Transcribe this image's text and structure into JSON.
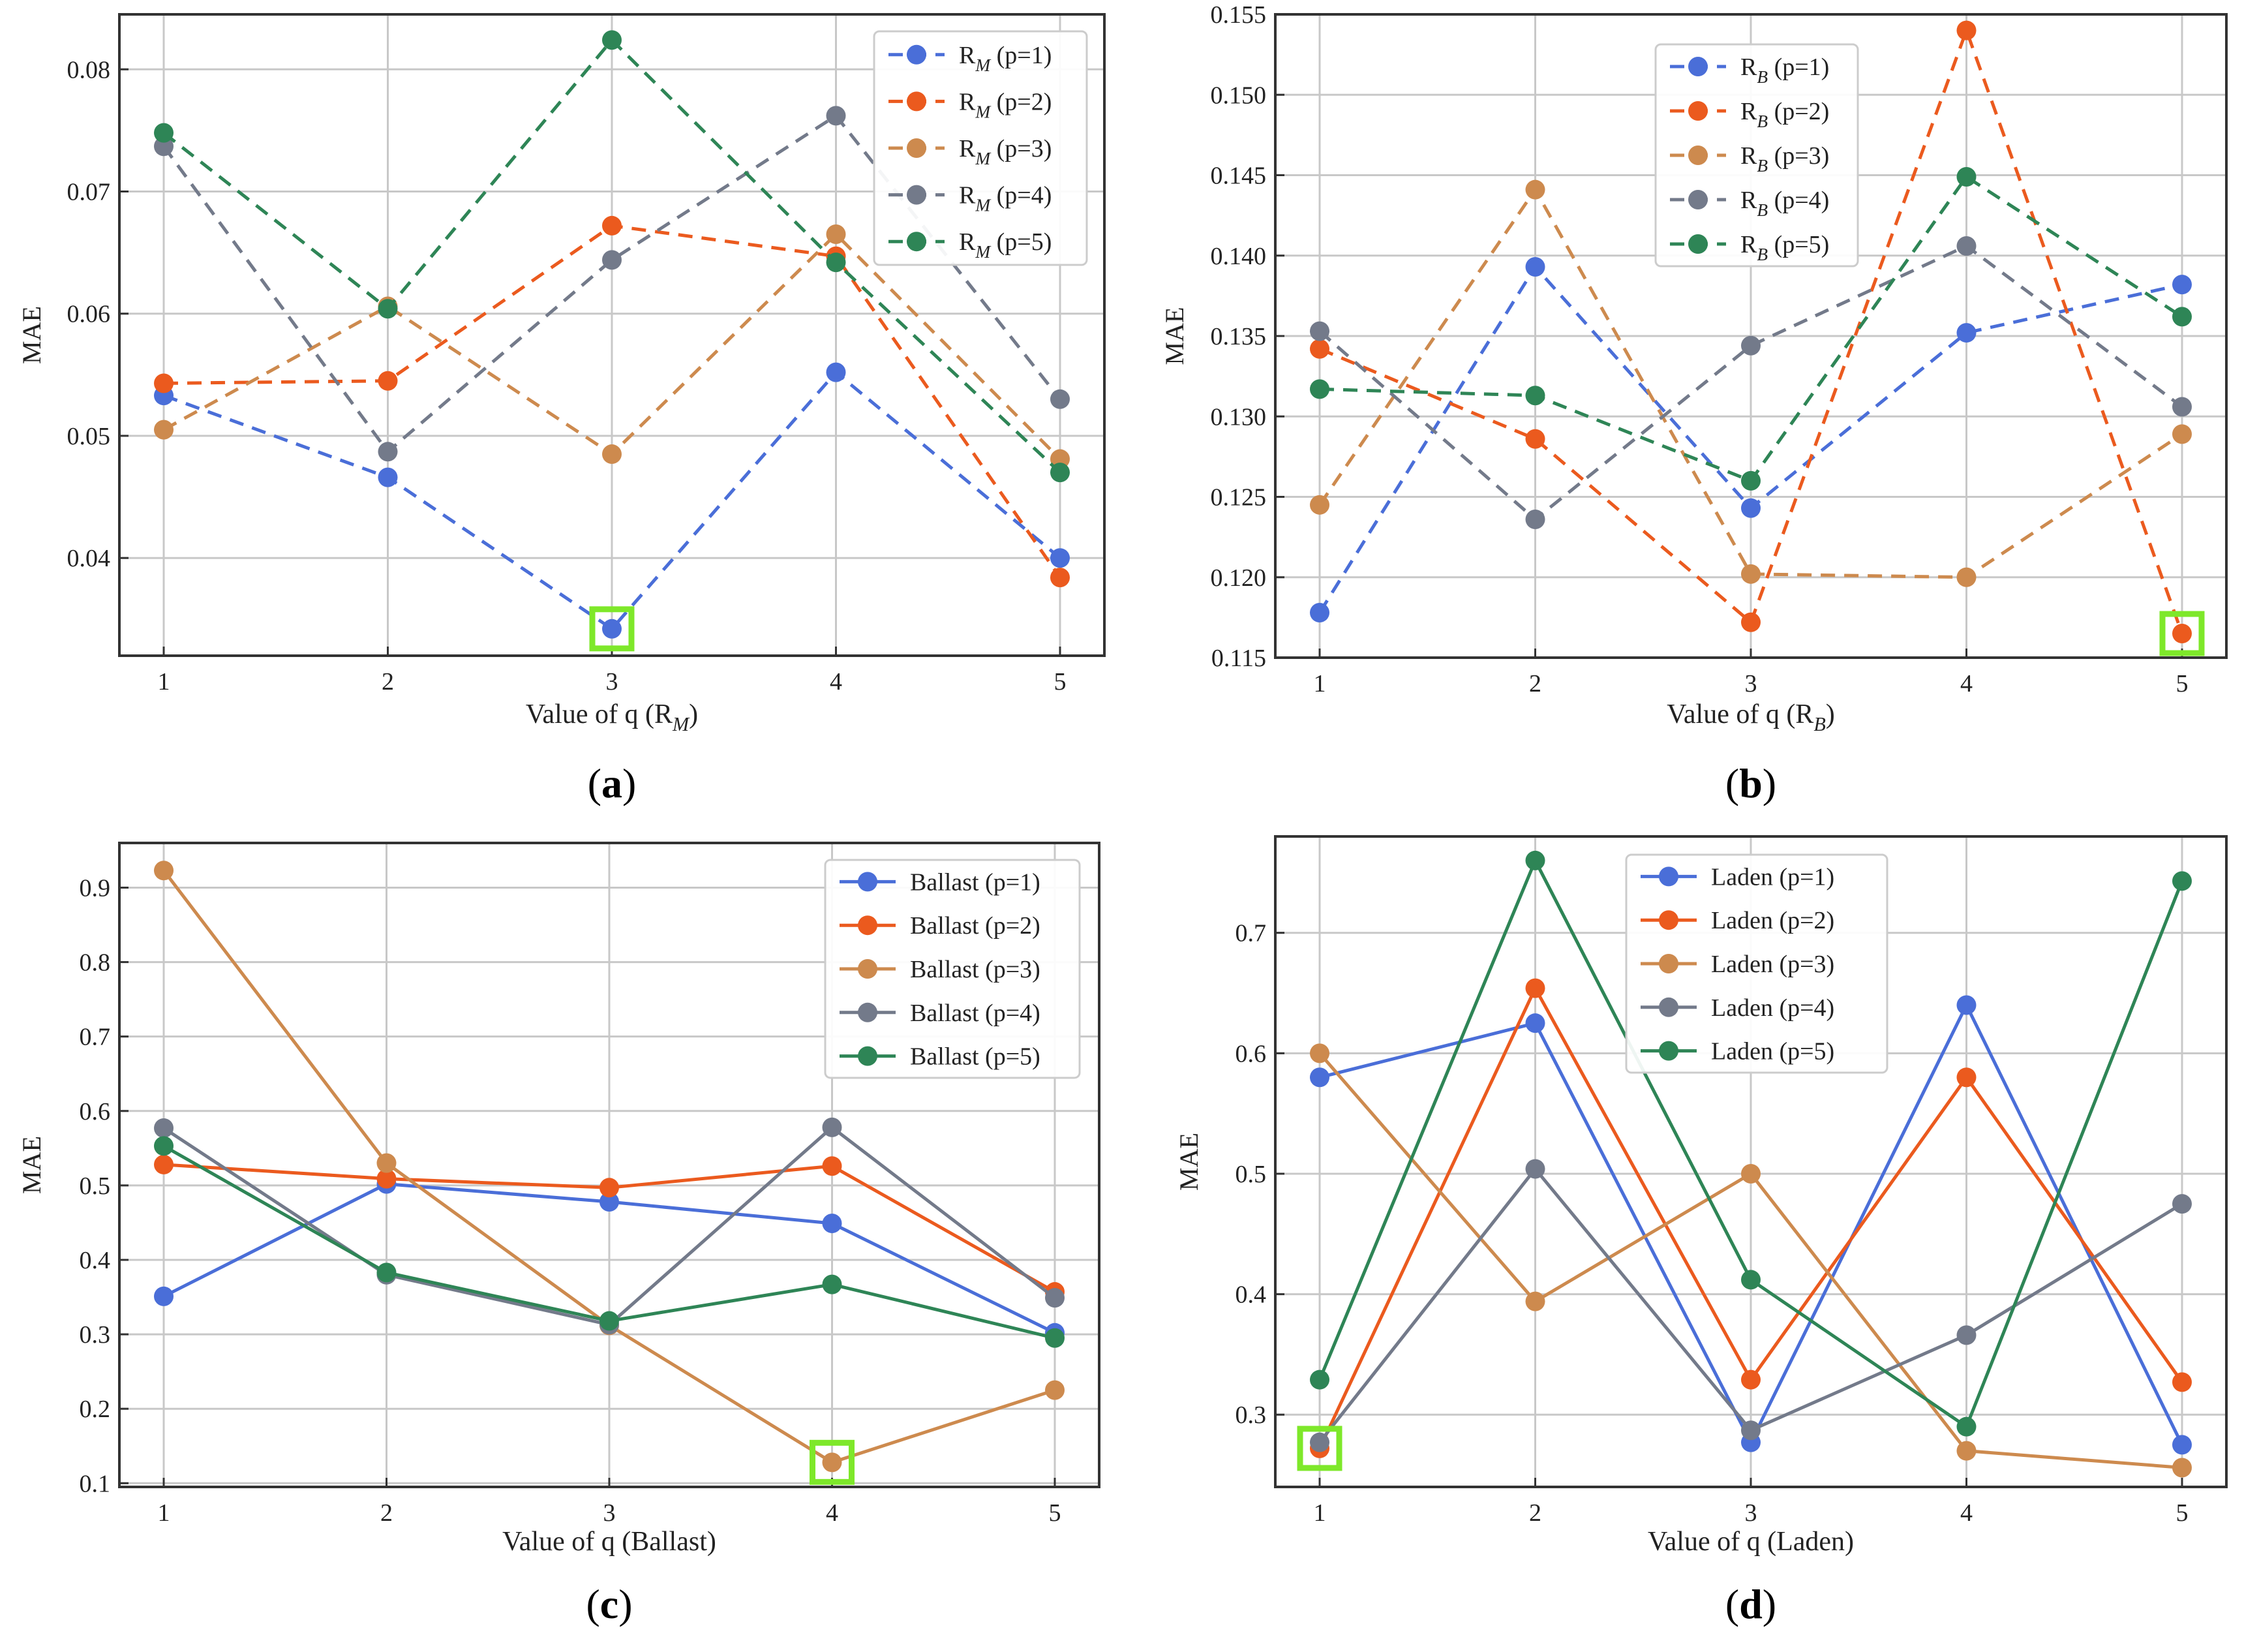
{
  "colors": {
    "p1": "#4a6ed8",
    "p2": "#eb5a1e",
    "p3": "#cd8a4e",
    "p4": "#737a8a",
    "p5": "#2e8556",
    "highlight": "#7ee82a",
    "grid": "#c8c8c8",
    "axis": "#333333"
  },
  "chart_data": [
    {
      "panel": "a",
      "panel_label": "a",
      "type": "line",
      "line_style": "dashed",
      "xlabel": "Value of q (R_M)",
      "xlabel_parts": [
        "Value of q (R",
        "M",
        ")"
      ],
      "ylabel": "MAE",
      "x": [
        1,
        2,
        3,
        4,
        5
      ],
      "xticks": [
        "1",
        "2",
        "3",
        "4",
        "5"
      ],
      "ylim": [
        0.032,
        0.0845
      ],
      "yticks": [
        0.04,
        0.05,
        0.06,
        0.07,
        0.08
      ],
      "ytick_labels": [
        "0.04",
        "0.05",
        "0.06",
        "0.07",
        "0.08"
      ],
      "legend_position": "top-right",
      "series": [
        {
          "name": "R_M (p=1)",
          "legend_parts": [
            "R",
            "M",
            " (p=1)"
          ],
          "color_key": "p1",
          "values": [
            0.0533,
            0.0466,
            0.0342,
            0.0552,
            0.04
          ]
        },
        {
          "name": "R_M (p=2)",
          "legend_parts": [
            "R",
            "M",
            " (p=2)"
          ],
          "color_key": "p2",
          "values": [
            0.0543,
            0.0545,
            0.0672,
            0.0647,
            0.0384
          ]
        },
        {
          "name": "R_M (p=3)",
          "legend_parts": [
            "R",
            "M",
            " (p=3)"
          ],
          "color_key": "p3",
          "values": [
            0.0505,
            0.0606,
            0.0485,
            0.0665,
            0.0481
          ]
        },
        {
          "name": "R_M (p=4)",
          "legend_parts": [
            "R",
            "M",
            " (p=4)"
          ],
          "color_key": "p4",
          "values": [
            0.0737,
            0.0487,
            0.0644,
            0.0762,
            0.053
          ]
        },
        {
          "name": "R_M (p=5)",
          "legend_parts": [
            "R",
            "M",
            " (p=5)"
          ],
          "color_key": "p5",
          "values": [
            0.0748,
            0.0604,
            0.0824,
            0.0642,
            0.047
          ]
        }
      ],
      "highlight": {
        "x": 3,
        "y": 0.0342,
        "series": "R_M (p=1)"
      }
    },
    {
      "panel": "b",
      "panel_label": "b",
      "type": "line",
      "line_style": "dashed",
      "xlabel": "Value of q (R_B)",
      "xlabel_parts": [
        "Value of q (R",
        "B",
        ")"
      ],
      "ylabel": "MAE",
      "x": [
        1,
        2,
        3,
        4,
        5
      ],
      "xticks": [
        "1",
        "2",
        "3",
        "4",
        "5"
      ],
      "ylim": [
        0.115,
        0.155
      ],
      "yticks": [
        0.115,
        0.12,
        0.125,
        0.13,
        0.135,
        0.14,
        0.145,
        0.15,
        0.155
      ],
      "ytick_labels": [
        "0.115",
        "0.120",
        "0.125",
        "0.130",
        "0.135",
        "0.140",
        "0.145",
        "0.150",
        "0.155"
      ],
      "legend_position": "top-center",
      "series": [
        {
          "name": "R_B (p=1)",
          "legend_parts": [
            "R",
            "B",
            " (p=1)"
          ],
          "color_key": "p1",
          "values": [
            0.1178,
            0.1393,
            0.1243,
            0.1352,
            0.1382
          ]
        },
        {
          "name": "R_B (p=2)",
          "legend_parts": [
            "R",
            "B",
            " (p=2)"
          ],
          "color_key": "p2",
          "values": [
            0.1342,
            0.1286,
            0.1172,
            0.154,
            0.1165
          ]
        },
        {
          "name": "R_B (p=3)",
          "legend_parts": [
            "R",
            "B",
            " (p=3)"
          ],
          "color_key": "p3",
          "values": [
            0.1245,
            0.1441,
            0.1202,
            0.12,
            0.1289
          ]
        },
        {
          "name": "R_B (p=4)",
          "legend_parts": [
            "R",
            "B",
            " (p=4)"
          ],
          "color_key": "p4",
          "values": [
            0.1353,
            0.1236,
            0.1344,
            0.1406,
            0.1306
          ]
        },
        {
          "name": "R_B (p=5)",
          "legend_parts": [
            "R",
            "B",
            " (p=5)"
          ],
          "color_key": "p5",
          "values": [
            0.1317,
            0.1313,
            0.126,
            0.1449,
            0.1362
          ]
        }
      ],
      "highlight": {
        "x": 5,
        "y": 0.1165,
        "series": "R_B (p=2)"
      }
    },
    {
      "panel": "c",
      "panel_label": "c",
      "type": "line",
      "line_style": "solid",
      "xlabel": "Value of q (Ballast)",
      "xlabel_parts": [
        "Value of q (Ballast)",
        "",
        ""
      ],
      "ylabel": "MAE",
      "x": [
        1,
        2,
        3,
        4,
        5
      ],
      "xticks": [
        "1",
        "2",
        "3",
        "4",
        "5"
      ],
      "ylim": [
        0.095,
        0.96
      ],
      "yticks": [
        0.1,
        0.2,
        0.3,
        0.4,
        0.5,
        0.6,
        0.7,
        0.8,
        0.9
      ],
      "ytick_labels": [
        "0.1",
        "0.2",
        "0.3",
        "0.4",
        "0.5",
        "0.6",
        "0.7",
        "0.8",
        "0.9"
      ],
      "legend_position": "top-right",
      "series": [
        {
          "name": "Ballast (p=1)",
          "legend_parts": [
            "Ballast (p=1)",
            "",
            ""
          ],
          "color_key": "p1",
          "values": [
            0.351,
            0.502,
            0.478,
            0.449,
            0.302
          ]
        },
        {
          "name": "Ballast (p=2)",
          "legend_parts": [
            "Ballast (p=2)",
            "",
            ""
          ],
          "color_key": "p2",
          "values": [
            0.528,
            0.509,
            0.497,
            0.526,
            0.357
          ]
        },
        {
          "name": "Ballast (p=3)",
          "legend_parts": [
            "Ballast (p=3)",
            "",
            ""
          ],
          "color_key": "p3",
          "values": [
            0.923,
            0.53,
            0.312,
            0.128,
            0.225
          ]
        },
        {
          "name": "Ballast (p=4)",
          "legend_parts": [
            "Ballast (p=4)",
            "",
            ""
          ],
          "color_key": "p4",
          "values": [
            0.577,
            0.38,
            0.313,
            0.578,
            0.349
          ]
        },
        {
          "name": "Ballast (p=5)",
          "legend_parts": [
            "Ballast (p=5)",
            "",
            ""
          ],
          "color_key": "p5",
          "values": [
            0.553,
            0.383,
            0.318,
            0.367,
            0.295
          ]
        }
      ],
      "highlight": {
        "x": 4,
        "y": 0.128,
        "series": "Ballast (p=3)"
      }
    },
    {
      "panel": "d",
      "panel_label": "d",
      "type": "line",
      "line_style": "solid",
      "xlabel": "Value of q (Laden)",
      "xlabel_parts": [
        "Value of q (Laden)",
        "",
        ""
      ],
      "ylabel": "MAE",
      "x": [
        1,
        2,
        3,
        4,
        5
      ],
      "xticks": [
        "1",
        "2",
        "3",
        "4",
        "5"
      ],
      "ylim": [
        0.24,
        0.78
      ],
      "yticks": [
        0.3,
        0.4,
        0.5,
        0.6,
        0.7
      ],
      "ytick_labels": [
        "0.3",
        "0.4",
        "0.5",
        "0.6",
        "0.7"
      ],
      "legend_position": "top-center",
      "series": [
        {
          "name": "Laden (p=1)",
          "legend_parts": [
            "Laden (p=1)",
            "",
            ""
          ],
          "color_key": "p1",
          "values": [
            0.58,
            0.625,
            0.277,
            0.64,
            0.275
          ]
        },
        {
          "name": "Laden (p=2)",
          "legend_parts": [
            "Laden (p=2)",
            "",
            ""
          ],
          "color_key": "p2",
          "values": [
            0.272,
            0.654,
            0.329,
            0.58,
            0.327
          ]
        },
        {
          "name": "Laden (p=3)",
          "legend_parts": [
            "Laden (p=3)",
            "",
            ""
          ],
          "color_key": "p3",
          "values": [
            0.6,
            0.394,
            0.5,
            0.27,
            0.256
          ]
        },
        {
          "name": "Laden (p=4)",
          "legend_parts": [
            "Laden (p=4)",
            "",
            ""
          ],
          "color_key": "p4",
          "values": [
            0.277,
            0.504,
            0.287,
            0.366,
            0.475
          ]
        },
        {
          "name": "Laden (p=5)",
          "legend_parts": [
            "Laden (p=5)",
            "",
            ""
          ],
          "color_key": "p5",
          "values": [
            0.329,
            0.76,
            0.412,
            0.29,
            0.743
          ]
        }
      ],
      "highlight": {
        "x": 1,
        "y": 0.272,
        "series": "Laden (p=2)"
      }
    }
  ]
}
